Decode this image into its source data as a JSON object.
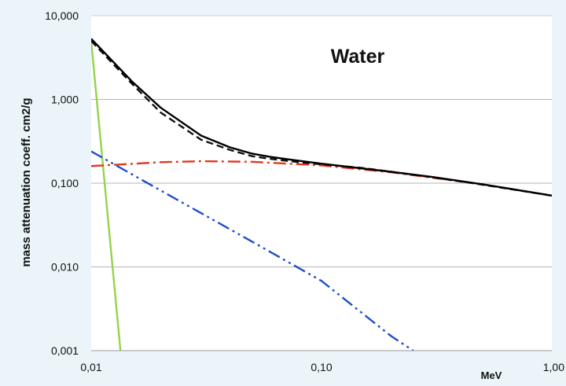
{
  "chart_data": {
    "type": "line",
    "title": "Water",
    "xlabel": "MeV",
    "ylabel": "mass attenuation coeff. cm2/g",
    "xscale": "log",
    "yscale": "log",
    "xlim": [
      0.01,
      1.0
    ],
    "ylim": [
      0.001,
      10.0
    ],
    "x_ticks": [
      {
        "value": 0.01,
        "label": "0,01"
      },
      {
        "value": 0.1,
        "label": "0,10"
      },
      {
        "value": 1.0,
        "label": "1,00"
      }
    ],
    "y_ticks": [
      {
        "value": 10.0,
        "label": "10,000"
      },
      {
        "value": 1.0,
        "label": "1,000"
      },
      {
        "value": 0.1,
        "label": "0,100"
      },
      {
        "value": 0.01,
        "label": "0,010"
      },
      {
        "value": 0.001,
        "label": "0,001"
      }
    ],
    "grid": "horizontal",
    "legend": "none",
    "series": [
      {
        "color": "#93d44a",
        "style": "solid",
        "x": [
          0.01,
          0.0134
        ],
        "y": [
          5.0,
          0.001
        ]
      },
      {
        "color": "#1f4fc8",
        "style": "dash-dot-dot",
        "x": [
          0.01,
          0.02,
          0.05,
          0.1,
          0.2,
          0.25
        ],
        "y": [
          0.24,
          0.082,
          0.02,
          0.0068,
          0.0015,
          0.001
        ]
      },
      {
        "color": "#e03a1e",
        "style": "dash-dot",
        "x": [
          0.01,
          0.02,
          0.03,
          0.05,
          0.1,
          0.2,
          0.5,
          1.0
        ],
        "y": [
          0.16,
          0.178,
          0.183,
          0.18,
          0.163,
          0.135,
          0.097,
          0.071
        ]
      },
      {
        "color": "#111111",
        "style": "dashed",
        "x": [
          0.01,
          0.015,
          0.02,
          0.03,
          0.04,
          0.05,
          0.06,
          0.08,
          0.1,
          0.15,
          0.2,
          0.3,
          0.5,
          1.0
        ],
        "y": [
          5.0,
          1.55,
          0.7,
          0.33,
          0.25,
          0.21,
          0.195,
          0.178,
          0.168,
          0.152,
          0.137,
          0.118,
          0.096,
          0.071
        ]
      },
      {
        "color": "#000000",
        "style": "solid",
        "x": [
          0.01,
          0.015,
          0.02,
          0.03,
          0.04,
          0.05,
          0.06,
          0.08,
          0.1,
          0.15,
          0.2,
          0.3,
          0.5,
          1.0
        ],
        "y": [
          5.3,
          1.65,
          0.8,
          0.37,
          0.268,
          0.225,
          0.206,
          0.185,
          0.171,
          0.15,
          0.137,
          0.119,
          0.097,
          0.071
        ]
      }
    ]
  }
}
